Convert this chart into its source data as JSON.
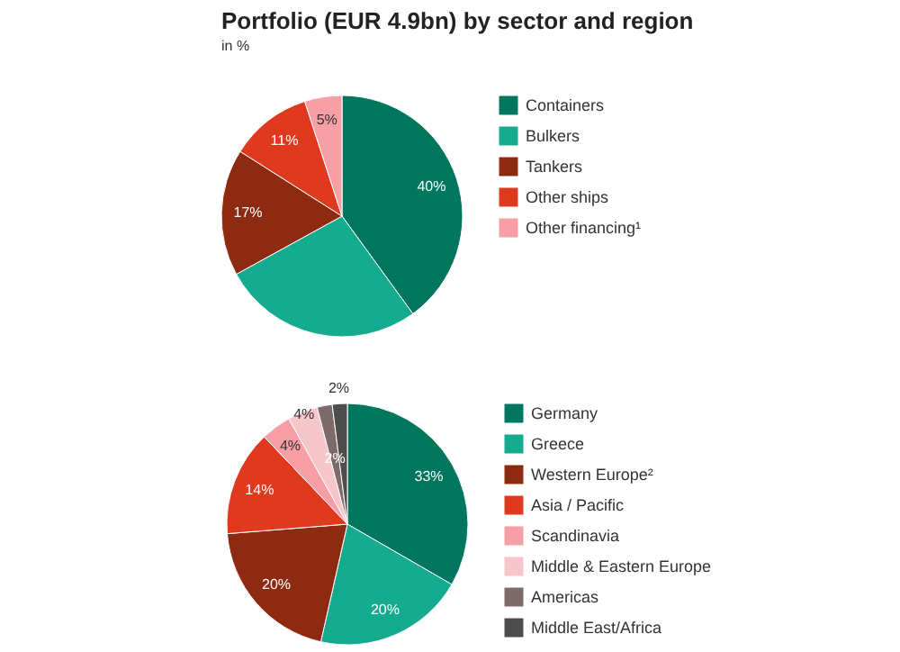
{
  "chart_data": [
    {
      "type": "pie",
      "title": "Portfolio (EUR 4.9bn) by sector and region",
      "subtitle": "in %",
      "categories": [
        "Containers",
        "Bulkers",
        "Tankers",
        "Other ships",
        "Other financing¹"
      ],
      "values": [
        40,
        27,
        17,
        11,
        5
      ],
      "colors": [
        "#00765f",
        "#14ab8e",
        "#8f2a12",
        "#e03a1e",
        "#f79ea7"
      ],
      "value_labels": [
        "40%",
        null,
        "17%",
        "11%",
        "5%"
      ],
      "legend": "right"
    },
    {
      "type": "pie",
      "categories": [
        "Germany",
        "Greece",
        "Western Europe²",
        "Asia / Pacific",
        "Scandinavia",
        "Middle & Eastern Europe",
        "Americas",
        "Middle East/Africa"
      ],
      "values": [
        33,
        20,
        20,
        14,
        4,
        4,
        2,
        2
      ],
      "colors": [
        "#00765f",
        "#14ab8e",
        "#8f2a12",
        "#e03a1e",
        "#f79ea7",
        "#f7c6ca",
        "#7d6b6b",
        "#4d4d4d"
      ],
      "value_labels": [
        "33%",
        "20%",
        "20%",
        "14%",
        "4%",
        "4%",
        "2%",
        "2%"
      ],
      "legend": "right"
    }
  ]
}
